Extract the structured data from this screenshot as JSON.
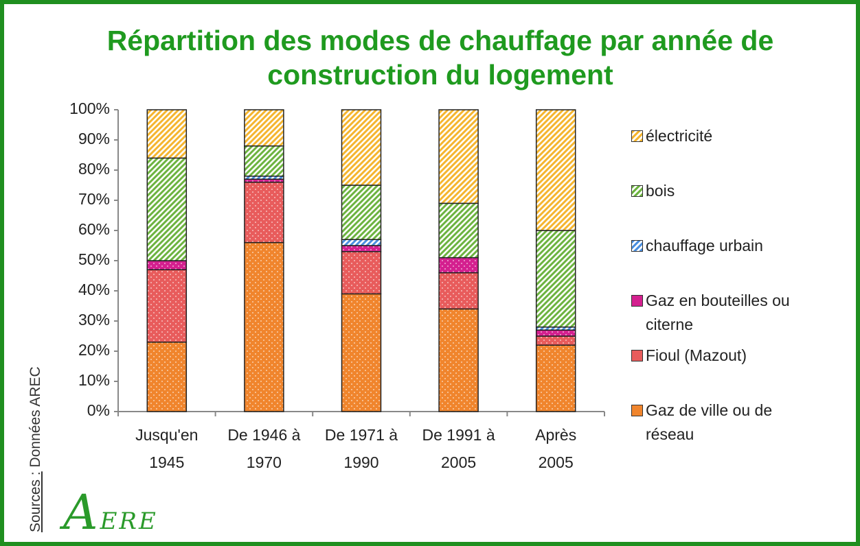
{
  "chart_data": {
    "type": "stacked_bar",
    "title": "Répartition des modes de chauffage par année de construction du logement",
    "categories": [
      "Jusqu'en 1945",
      "De 1946 à 1970",
      "De 1971 à 1990",
      "De 1991 à 2005",
      "Après 2005"
    ],
    "series": [
      {
        "name": "Gaz de ville ou de réseau",
        "color": "#f0852d",
        "pattern": "dots",
        "values": [
          23,
          56,
          39,
          34,
          22
        ]
      },
      {
        "name": "Fioul (Mazout)",
        "color": "#e85c5c",
        "pattern": "dots",
        "values": [
          24,
          20,
          14,
          12,
          3
        ]
      },
      {
        "name": "Gaz en bouteilles ou citerne",
        "color": "#d4208f",
        "pattern": "dots",
        "values": [
          3,
          1,
          2,
          5,
          2
        ]
      },
      {
        "name": "chauffage urbain",
        "color": "#4a8fe0",
        "pattern": "hatch",
        "values": [
          0,
          1,
          2,
          0,
          1
        ]
      },
      {
        "name": "bois",
        "color": "#6cb33f",
        "pattern": "hatch",
        "values": [
          34,
          10,
          18,
          18,
          32
        ]
      },
      {
        "name": "électricité",
        "color": "#f5b52e",
        "pattern": "hatch",
        "values": [
          16,
          12,
          25,
          31,
          40
        ]
      }
    ],
    "ylim": [
      0,
      100
    ],
    "yticks": [
      {
        "value": 0,
        "label": "0%"
      },
      {
        "value": 10,
        "label": "10%"
      },
      {
        "value": 20,
        "label": "20%"
      },
      {
        "value": 30,
        "label": "30%"
      },
      {
        "value": 40,
        "label": "40%"
      },
      {
        "value": 50,
        "label": "50%"
      },
      {
        "value": 60,
        "label": "60%"
      },
      {
        "value": 70,
        "label": "70%"
      },
      {
        "value": 80,
        "label": "80%"
      },
      {
        "value": 90,
        "label": "90%"
      },
      {
        "value": 100,
        "label": "100%"
      }
    ],
    "legend": "right",
    "source_label": "Sources :",
    "source": "Données AREC",
    "logo": "AERE"
  }
}
